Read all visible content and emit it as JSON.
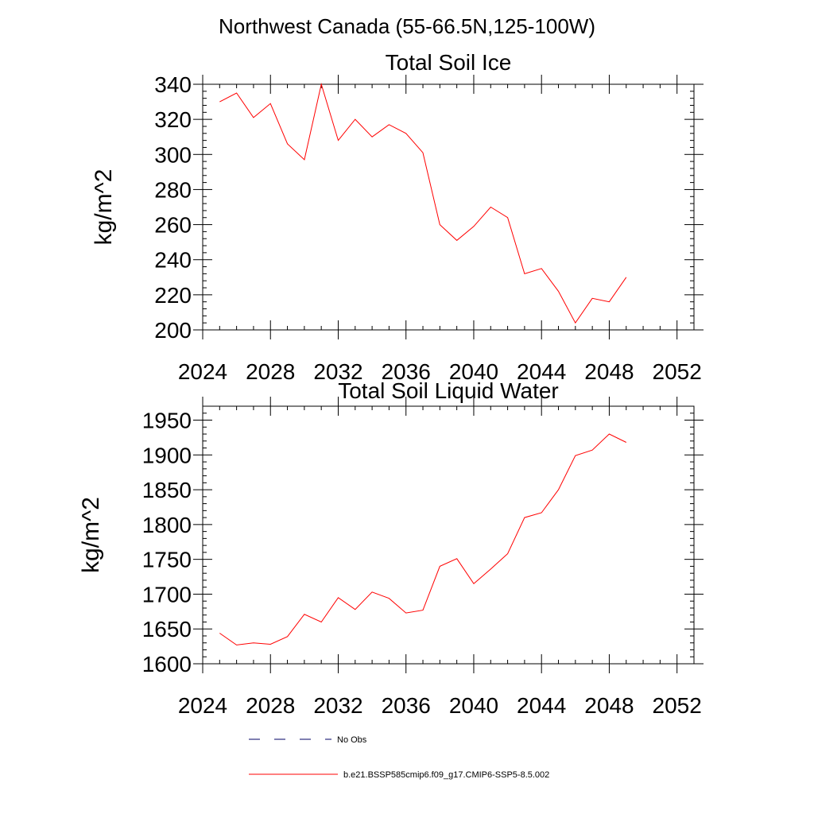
{
  "page": {
    "suptitle": "Northwest Canada (55-66.5N,125-100W)"
  },
  "chart_data": [
    {
      "type": "line",
      "title": "Total Soil Ice",
      "xlabel": "",
      "ylabel": "kg/m^2",
      "xlim": [
        2024,
        2053
      ],
      "ylim": [
        200,
        340
      ],
      "xticks": [
        2024,
        2028,
        2032,
        2036,
        2040,
        2044,
        2048,
        2052
      ],
      "yticks": [
        200,
        220,
        240,
        260,
        280,
        300,
        320,
        340
      ],
      "x": [
        2025,
        2026,
        2027,
        2028,
        2029,
        2030,
        2031,
        2032,
        2033,
        2034,
        2035,
        2036,
        2037,
        2038,
        2039,
        2040,
        2041,
        2042,
        2043,
        2044,
        2045,
        2046,
        2047,
        2048,
        2049
      ],
      "series": [
        {
          "name": "b.e21.BSSP585cmip6.f09_g17.CMIP6-SSP5-8.5.002",
          "color": "#ff0000",
          "values": [
            330,
            335,
            321,
            329,
            306,
            297,
            340,
            308,
            320,
            310,
            317,
            312,
            301,
            260,
            251,
            259,
            270,
            264,
            232,
            235,
            222,
            204,
            218,
            216,
            230
          ]
        }
      ]
    },
    {
      "type": "line",
      "title": "Total Soil Liquid Water",
      "xlabel": "",
      "ylabel": "kg/m^2",
      "xlim": [
        2024,
        2053
      ],
      "ylim": [
        1600,
        1970
      ],
      "xticks": [
        2024,
        2028,
        2032,
        2036,
        2040,
        2044,
        2048,
        2052
      ],
      "yticks": [
        1600,
        1650,
        1700,
        1750,
        1800,
        1850,
        1900,
        1950
      ],
      "x": [
        2025,
        2026,
        2027,
        2028,
        2029,
        2030,
        2031,
        2032,
        2033,
        2034,
        2035,
        2036,
        2037,
        2038,
        2039,
        2040,
        2041,
        2042,
        2043,
        2044,
        2045,
        2046,
        2047,
        2048,
        2049
      ],
      "series": [
        {
          "name": "b.e21.BSSP585cmip6.f09_g17.CMIP6-SSP5-8.5.002",
          "color": "#ff0000",
          "values": [
            1644,
            1627,
            1630,
            1628,
            1639,
            1671,
            1660,
            1695,
            1678,
            1703,
            1694,
            1673,
            1677,
            1740,
            1751,
            1715,
            1736,
            1758,
            1810,
            1817,
            1850,
            1899,
            1907,
            1930,
            1918
          ]
        }
      ]
    }
  ],
  "legend": {
    "items": [
      {
        "label": "No Obs",
        "style": "dashed",
        "color": "#000066"
      },
      {
        "label": "b.e21.BSSP585cmip6.f09_g17.CMIP6-SSP5-8.5.002",
        "style": "solid",
        "color": "#ff0000"
      }
    ]
  }
}
